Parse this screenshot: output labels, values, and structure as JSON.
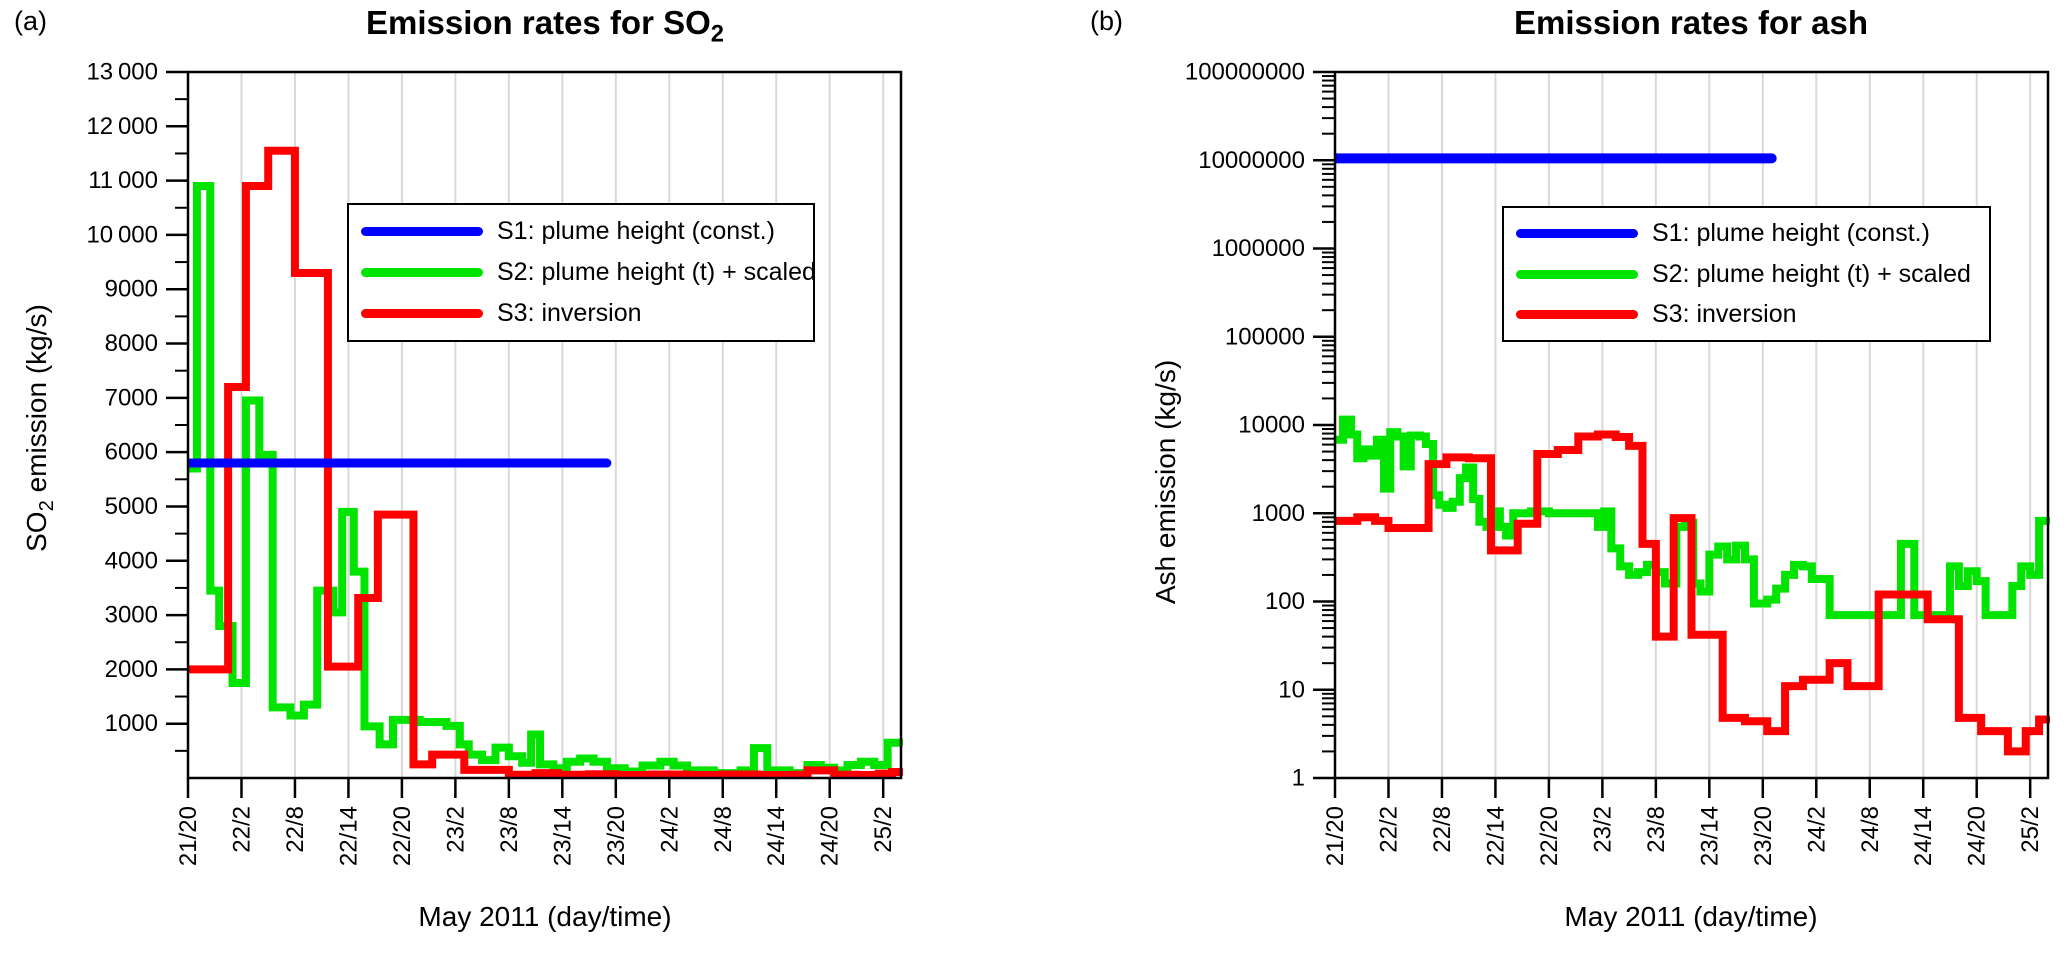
{
  "figure": {
    "background": "#ffffff",
    "panel_a_label": "(a)",
    "panel_b_label": "(b)"
  },
  "colors": {
    "s1_blue": "#0000ff",
    "s2_green": "#00e400",
    "s3_red": "#ff0000",
    "grid": "#d9d9d9",
    "axis": "#000000",
    "text": "#000000"
  },
  "chart_data": [
    {
      "id": "so2",
      "type": "line",
      "subtype": "step-after",
      "title_main": "Emission rates for SO",
      "title_sub": "2",
      "ylabel_pre": "SO",
      "ylabel_sub": "2",
      "ylabel_post": " emission (kg/s)",
      "xlabel": "May 2011 (day/time)",
      "x_unit": "hours since 2011-05-21 20:00 UTC",
      "xlim": [
        0,
        80
      ],
      "ylim": [
        0,
        13000
      ],
      "yscale": "linear",
      "y_minor_step": 500,
      "grid": "vertical",
      "x_ticks": {
        "hours": [
          0,
          6,
          12,
          18,
          24,
          30,
          36,
          42,
          48,
          54,
          60,
          66,
          72,
          78
        ],
        "labels": [
          "21/20",
          "22/2",
          "22/8",
          "22/14",
          "22/20",
          "23/2",
          "23/8",
          "23/14",
          "23/20",
          "24/2",
          "24/8",
          "24/14",
          "24/20",
          "25/2"
        ]
      },
      "y_ticks": {
        "values": [
          13000,
          12000,
          11000,
          10000,
          9000,
          8000,
          7000,
          6000,
          5000,
          4000,
          3000,
          2000,
          1000
        ],
        "labels": [
          "13 000",
          "12 000",
          "11 000",
          "10 000",
          "9000",
          "8000",
          "7000",
          "6000",
          "5000",
          "4000",
          "3000",
          "2000",
          "1000"
        ]
      },
      "legend": [
        {
          "name": "S1",
          "label": "S1: plume height (const.)",
          "color": "#0000ff"
        },
        {
          "name": "S2",
          "label": "S2: plume height (t) + scaled",
          "color": "#00e400"
        },
        {
          "name": "S3",
          "label": "S3: inversion",
          "color": "#ff0000"
        }
      ],
      "series": [
        {
          "name": "S2",
          "color": "#00e400",
          "width": 8,
          "t_end": 80,
          "points": [
            [
              0,
              5700
            ],
            [
              1,
              10900
            ],
            [
              2.5,
              3450
            ],
            [
              3.5,
              2800
            ],
            [
              5,
              1750
            ],
            [
              6.5,
              6950
            ],
            [
              8,
              5950
            ],
            [
              9.5,
              1300
            ],
            [
              11.5,
              1150
            ],
            [
              13,
              1350
            ],
            [
              14.5,
              3450
            ],
            [
              16.3,
              3050
            ],
            [
              17.3,
              4900
            ],
            [
              18.6,
              3800
            ],
            [
              19.8,
              950
            ],
            [
              21.5,
              620
            ],
            [
              23,
              1070
            ],
            [
              26,
              1030
            ],
            [
              29,
              960
            ],
            [
              30.5,
              620
            ],
            [
              31.5,
              430
            ],
            [
              33,
              330
            ],
            [
              34.5,
              560
            ],
            [
              36,
              400
            ],
            [
              37.5,
              280
            ],
            [
              38.5,
              800
            ],
            [
              39.5,
              250
            ],
            [
              41,
              180
            ],
            [
              42.5,
              300
            ],
            [
              44,
              360
            ],
            [
              45.5,
              300
            ],
            [
              47,
              180
            ],
            [
              49,
              120
            ],
            [
              51,
              230
            ],
            [
              53,
              300
            ],
            [
              54.5,
              230
            ],
            [
              56,
              140
            ],
            [
              59,
              90
            ],
            [
              62,
              140
            ],
            [
              63.5,
              550
            ],
            [
              65,
              140
            ],
            [
              67.5,
              90
            ],
            [
              69.5,
              240
            ],
            [
              71,
              190
            ],
            [
              72.5,
              140
            ],
            [
              74,
              240
            ],
            [
              75.5,
              300
            ],
            [
              77,
              240
            ],
            [
              78.5,
              650
            ]
          ]
        },
        {
          "name": "S3",
          "color": "#ff0000",
          "width": 8,
          "t_end": 80,
          "points": [
            [
              0,
              2000
            ],
            [
              4.5,
              7200
            ],
            [
              6.5,
              10900
            ],
            [
              9,
              11550
            ],
            [
              12,
              9300
            ],
            [
              15.7,
              2050
            ],
            [
              19.1,
              3315
            ],
            [
              21.3,
              4850
            ],
            [
              25.3,
              250
            ],
            [
              27.4,
              430
            ],
            [
              31,
              150
            ],
            [
              36,
              60
            ],
            [
              39,
              90
            ],
            [
              41.5,
              60
            ],
            [
              45,
              70
            ],
            [
              48,
              55
            ],
            [
              52,
              65
            ],
            [
              56,
              55
            ],
            [
              60,
              65
            ],
            [
              64,
              55
            ],
            [
              68,
              60
            ],
            [
              69.5,
              140
            ],
            [
              72.5,
              60
            ],
            [
              75,
              55
            ],
            [
              77.5,
              80
            ],
            [
              79,
              110
            ]
          ]
        },
        {
          "name": "S1",
          "color": "#0000ff",
          "width": 9,
          "t_end": 47,
          "points": [
            [
              0,
              5800
            ]
          ]
        }
      ]
    },
    {
      "id": "ash",
      "type": "line",
      "subtype": "step-after",
      "title_main": "Emission rates for ash",
      "title_sub": "",
      "ylabel_pre": "Ash emission (kg/s)",
      "ylabel_sub": "",
      "ylabel_post": "",
      "xlabel": "May 2011 (day/time)",
      "x_unit": "hours since 2011-05-21 20:00 UTC",
      "xlim": [
        0,
        80
      ],
      "ylim": [
        1,
        100000000
      ],
      "yscale": "log",
      "grid": "vertical",
      "x_ticks": {
        "hours": [
          0,
          6,
          12,
          18,
          24,
          30,
          36,
          42,
          48,
          54,
          60,
          66,
          72,
          78
        ],
        "labels": [
          "21/20",
          "22/2",
          "22/8",
          "22/14",
          "22/20",
          "23/2",
          "23/8",
          "23/14",
          "23/20",
          "24/2",
          "24/8",
          "24/14",
          "24/20",
          "25/2"
        ]
      },
      "y_ticks": {
        "values": [
          100000000,
          10000000,
          1000000,
          100000,
          10000,
          1000,
          100,
          10,
          1
        ],
        "labels": [
          "100000000",
          "10000000",
          "1000000",
          "100000",
          "10000",
          "1000",
          "100",
          "10",
          "1"
        ]
      },
      "legend": [
        {
          "name": "S1",
          "label": "S1: plume height (const.)",
          "color": "#0000ff"
        },
        {
          "name": "S2",
          "label": "S2: plume height (t) + scaled",
          "color": "#00e400"
        },
        {
          "name": "S3",
          "label": "S3: inversion",
          "color": "#ff0000"
        }
      ],
      "series": [
        {
          "name": "S2",
          "color": "#00e400",
          "width": 8,
          "t_end": 80,
          "points": [
            [
              0,
              6800
            ],
            [
              0.9,
              11500
            ],
            [
              1.8,
              7800
            ],
            [
              2.5,
              4200
            ],
            [
              3.2,
              5300
            ],
            [
              4,
              4500
            ],
            [
              4.7,
              6800
            ],
            [
              5.5,
              1900
            ],
            [
              6.2,
              8300
            ],
            [
              7,
              7400
            ],
            [
              7.7,
              3400
            ],
            [
              8.5,
              7600
            ],
            [
              9.5,
              7400
            ],
            [
              10.2,
              6100
            ],
            [
              11,
              1600
            ],
            [
              11.7,
              1250
            ],
            [
              12.5,
              1150
            ],
            [
              13.2,
              1350
            ],
            [
              14,
              2500
            ],
            [
              14.7,
              3300
            ],
            [
              15.5,
              1450
            ],
            [
              16.2,
              800
            ],
            [
              17,
              700
            ],
            [
              17.7,
              1050
            ],
            [
              18.5,
              700
            ],
            [
              19.2,
              560
            ],
            [
              20,
              1000
            ],
            [
              22,
              1050
            ],
            [
              24,
              1000
            ],
            [
              28,
              1000
            ],
            [
              29.5,
              700
            ],
            [
              30.2,
              1050
            ],
            [
              31,
              400
            ],
            [
              32,
              250
            ],
            [
              33,
              200
            ],
            [
              34,
              215
            ],
            [
              35,
              260
            ],
            [
              36,
              215
            ],
            [
              37,
              160
            ],
            [
              38.3,
              700
            ],
            [
              39.3,
              780
            ],
            [
              40.2,
              160
            ],
            [
              41,
              130
            ],
            [
              42,
              340
            ],
            [
              43,
              420
            ],
            [
              44,
              300
            ],
            [
              45,
              430
            ],
            [
              46,
              300
            ],
            [
              47,
              95
            ],
            [
              48.5,
              105
            ],
            [
              49.5,
              140
            ],
            [
              50.5,
              200
            ],
            [
              51.5,
              260
            ],
            [
              52.5,
              250
            ],
            [
              53.5,
              180
            ],
            [
              55.5,
              70
            ],
            [
              63.5,
              450
            ],
            [
              65,
              70
            ],
            [
              69,
              250
            ],
            [
              70,
              150
            ],
            [
              71,
              220
            ],
            [
              72,
              170
            ],
            [
              73,
              70
            ],
            [
              76,
              150
            ],
            [
              77,
              250
            ],
            [
              78,
              200
            ],
            [
              79,
              820
            ]
          ]
        },
        {
          "name": "S3",
          "color": "#ff0000",
          "width": 8,
          "t_end": 80,
          "points": [
            [
              0,
              820
            ],
            [
              2.5,
              900
            ],
            [
              4.5,
              820
            ],
            [
              6,
              680
            ],
            [
              10.5,
              3600
            ],
            [
              12.5,
              4300
            ],
            [
              15,
              4200
            ],
            [
              17.5,
              380
            ],
            [
              20.5,
              760
            ],
            [
              22.7,
              4700
            ],
            [
              25,
              5200
            ],
            [
              27.3,
              7400
            ],
            [
              29.5,
              7800
            ],
            [
              31.5,
              7300
            ],
            [
              33,
              5800
            ],
            [
              34.5,
              450
            ],
            [
              36,
              40
            ],
            [
              38,
              880
            ],
            [
              40,
              42
            ],
            [
              43.5,
              4.8
            ],
            [
              46,
              4.4
            ],
            [
              48.5,
              3.4
            ],
            [
              50.5,
              11
            ],
            [
              52.5,
              13
            ],
            [
              55.5,
              20
            ],
            [
              57.5,
              11
            ],
            [
              61,
              120
            ],
            [
              66.5,
              63
            ],
            [
              70,
              4.8
            ],
            [
              72.5,
              3.4
            ],
            [
              75.5,
              2
            ],
            [
              77.5,
              3.4
            ],
            [
              79,
              4.6
            ]
          ]
        },
        {
          "name": "S1",
          "color": "#0000ff",
          "width": 10,
          "t_end": 49,
          "points": [
            [
              0,
              10500000
            ]
          ]
        }
      ]
    }
  ]
}
